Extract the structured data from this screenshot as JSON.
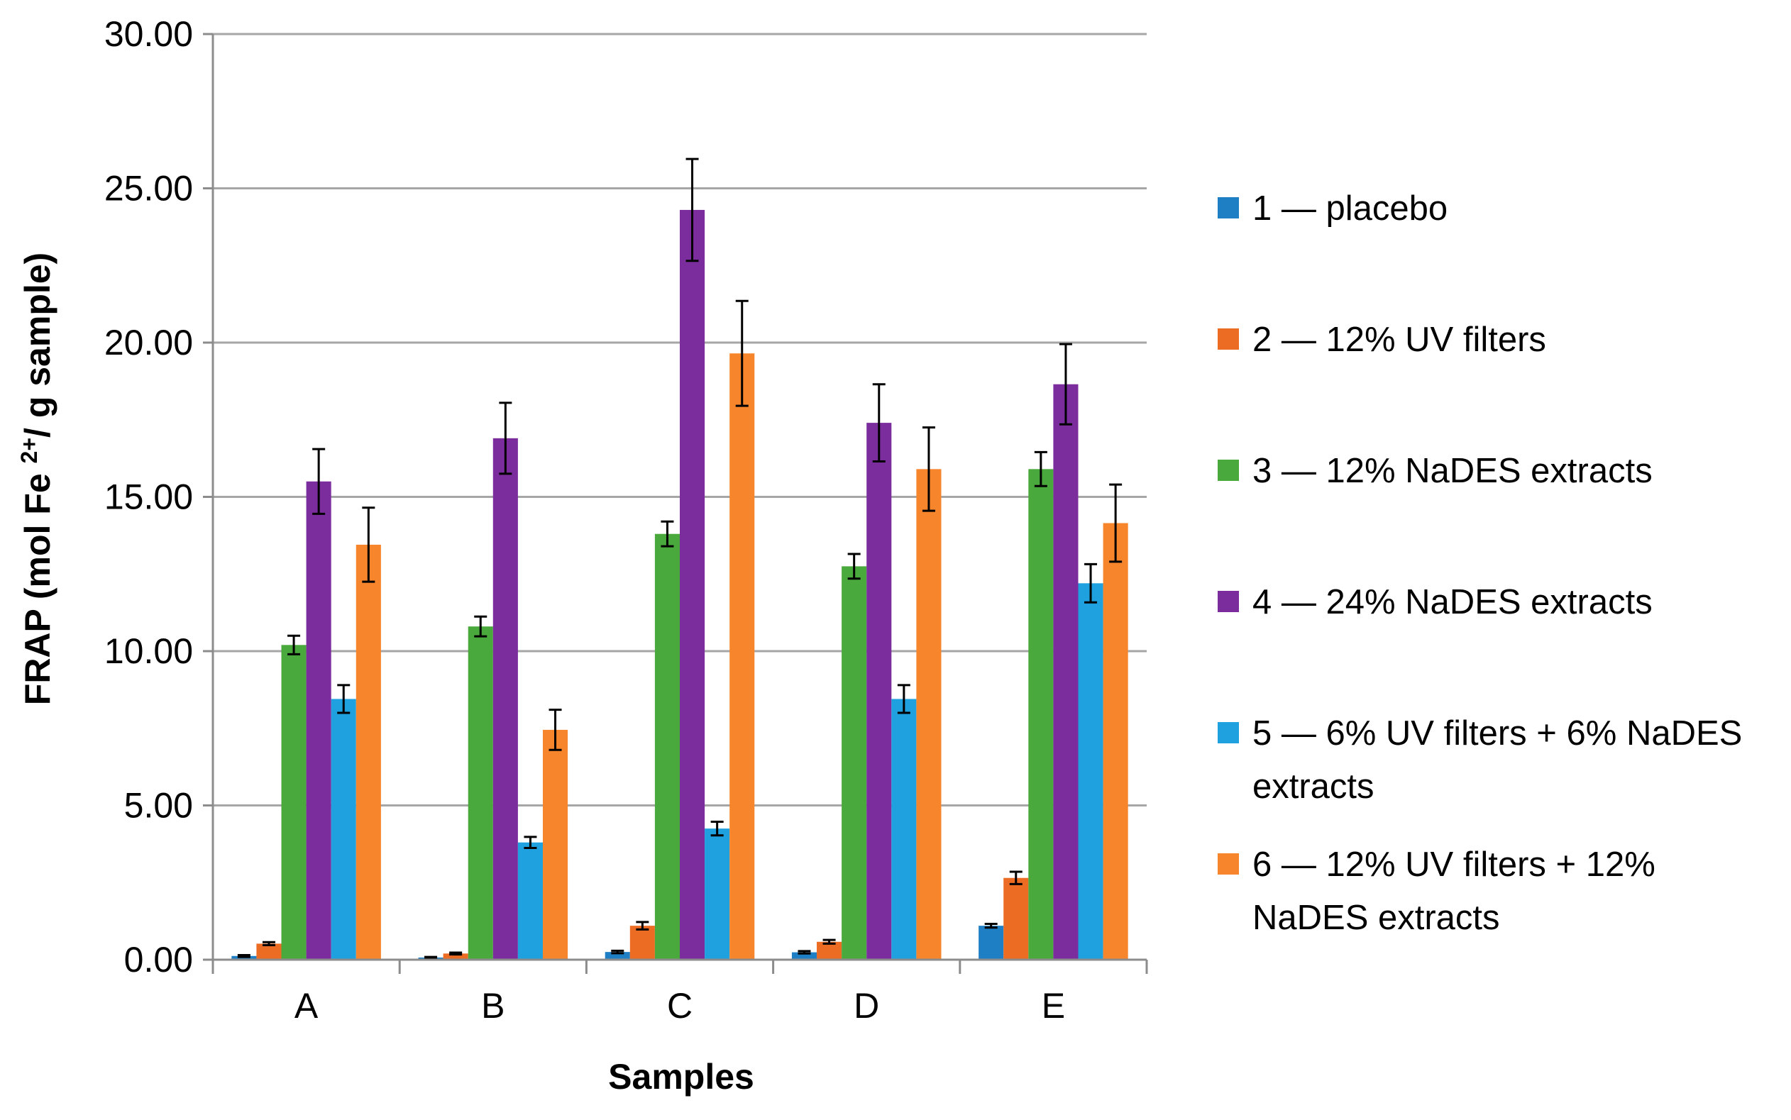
{
  "chart_data": {
    "type": "bar",
    "title": "",
    "xlabel": "Samples",
    "ylabel": "FRAP (mol Fe 2+/ g sample)",
    "ylim": [
      0,
      30
    ],
    "yticks": [
      "0.00",
      "5.00",
      "10.00",
      "15.00",
      "20.00",
      "25.00",
      "30.00"
    ],
    "grid": true,
    "legend_position": "right",
    "categories": [
      "A",
      "B",
      "C",
      "D",
      "E"
    ],
    "series": [
      {
        "name": "1 — placebo",
        "legend_lines": [
          "1 — placebo"
        ],
        "color": "#1f7fc4",
        "values": [
          0.12,
          0.07,
          0.25,
          0.24,
          1.1
        ],
        "errors": [
          0.03,
          0.02,
          0.04,
          0.04,
          0.06
        ]
      },
      {
        "name": "2 — 12% UV filters",
        "legend_lines": [
          "2 — 12% UV filters"
        ],
        "color": "#ed6c24",
        "values": [
          0.52,
          0.2,
          1.1,
          0.58,
          2.65
        ],
        "errors": [
          0.05,
          0.03,
          0.12,
          0.06,
          0.2
        ]
      },
      {
        "name": "3 — 12% NaDES extracts",
        "legend_lines": [
          "3 — 12% NaDES extracts"
        ],
        "color": "#4aa93c",
        "values": [
          10.2,
          10.8,
          13.8,
          12.75,
          15.9
        ],
        "errors": [
          0.3,
          0.32,
          0.4,
          0.4,
          0.55
        ]
      },
      {
        "name": "4 — 24% NaDES extracts",
        "legend_lines": [
          "4 — 24% NaDES extracts"
        ],
        "color": "#7b2d9e",
        "values": [
          15.5,
          16.9,
          24.3,
          17.4,
          18.65
        ],
        "errors": [
          1.05,
          1.15,
          1.65,
          1.25,
          1.3
        ]
      },
      {
        "name": "5 — 6% UV filters + 6% NaDES extracts",
        "legend_lines": [
          "5 — 6% UV filters + 6% NaDES",
          "extracts"
        ],
        "color": "#1ea1de",
        "values": [
          8.45,
          3.8,
          4.25,
          8.45,
          12.2
        ],
        "errors": [
          0.45,
          0.18,
          0.22,
          0.45,
          0.62
        ]
      },
      {
        "name": "6 — 12% UV filters + 12% NaDES extracts",
        "legend_lines": [
          "6 — 12% UV filters + 12%",
          "NaDES extracts"
        ],
        "color": "#f7852c",
        "values": [
          13.45,
          7.45,
          19.65,
          15.9,
          14.15
        ],
        "errors": [
          1.2,
          0.65,
          1.7,
          1.35,
          1.25
        ]
      }
    ]
  }
}
